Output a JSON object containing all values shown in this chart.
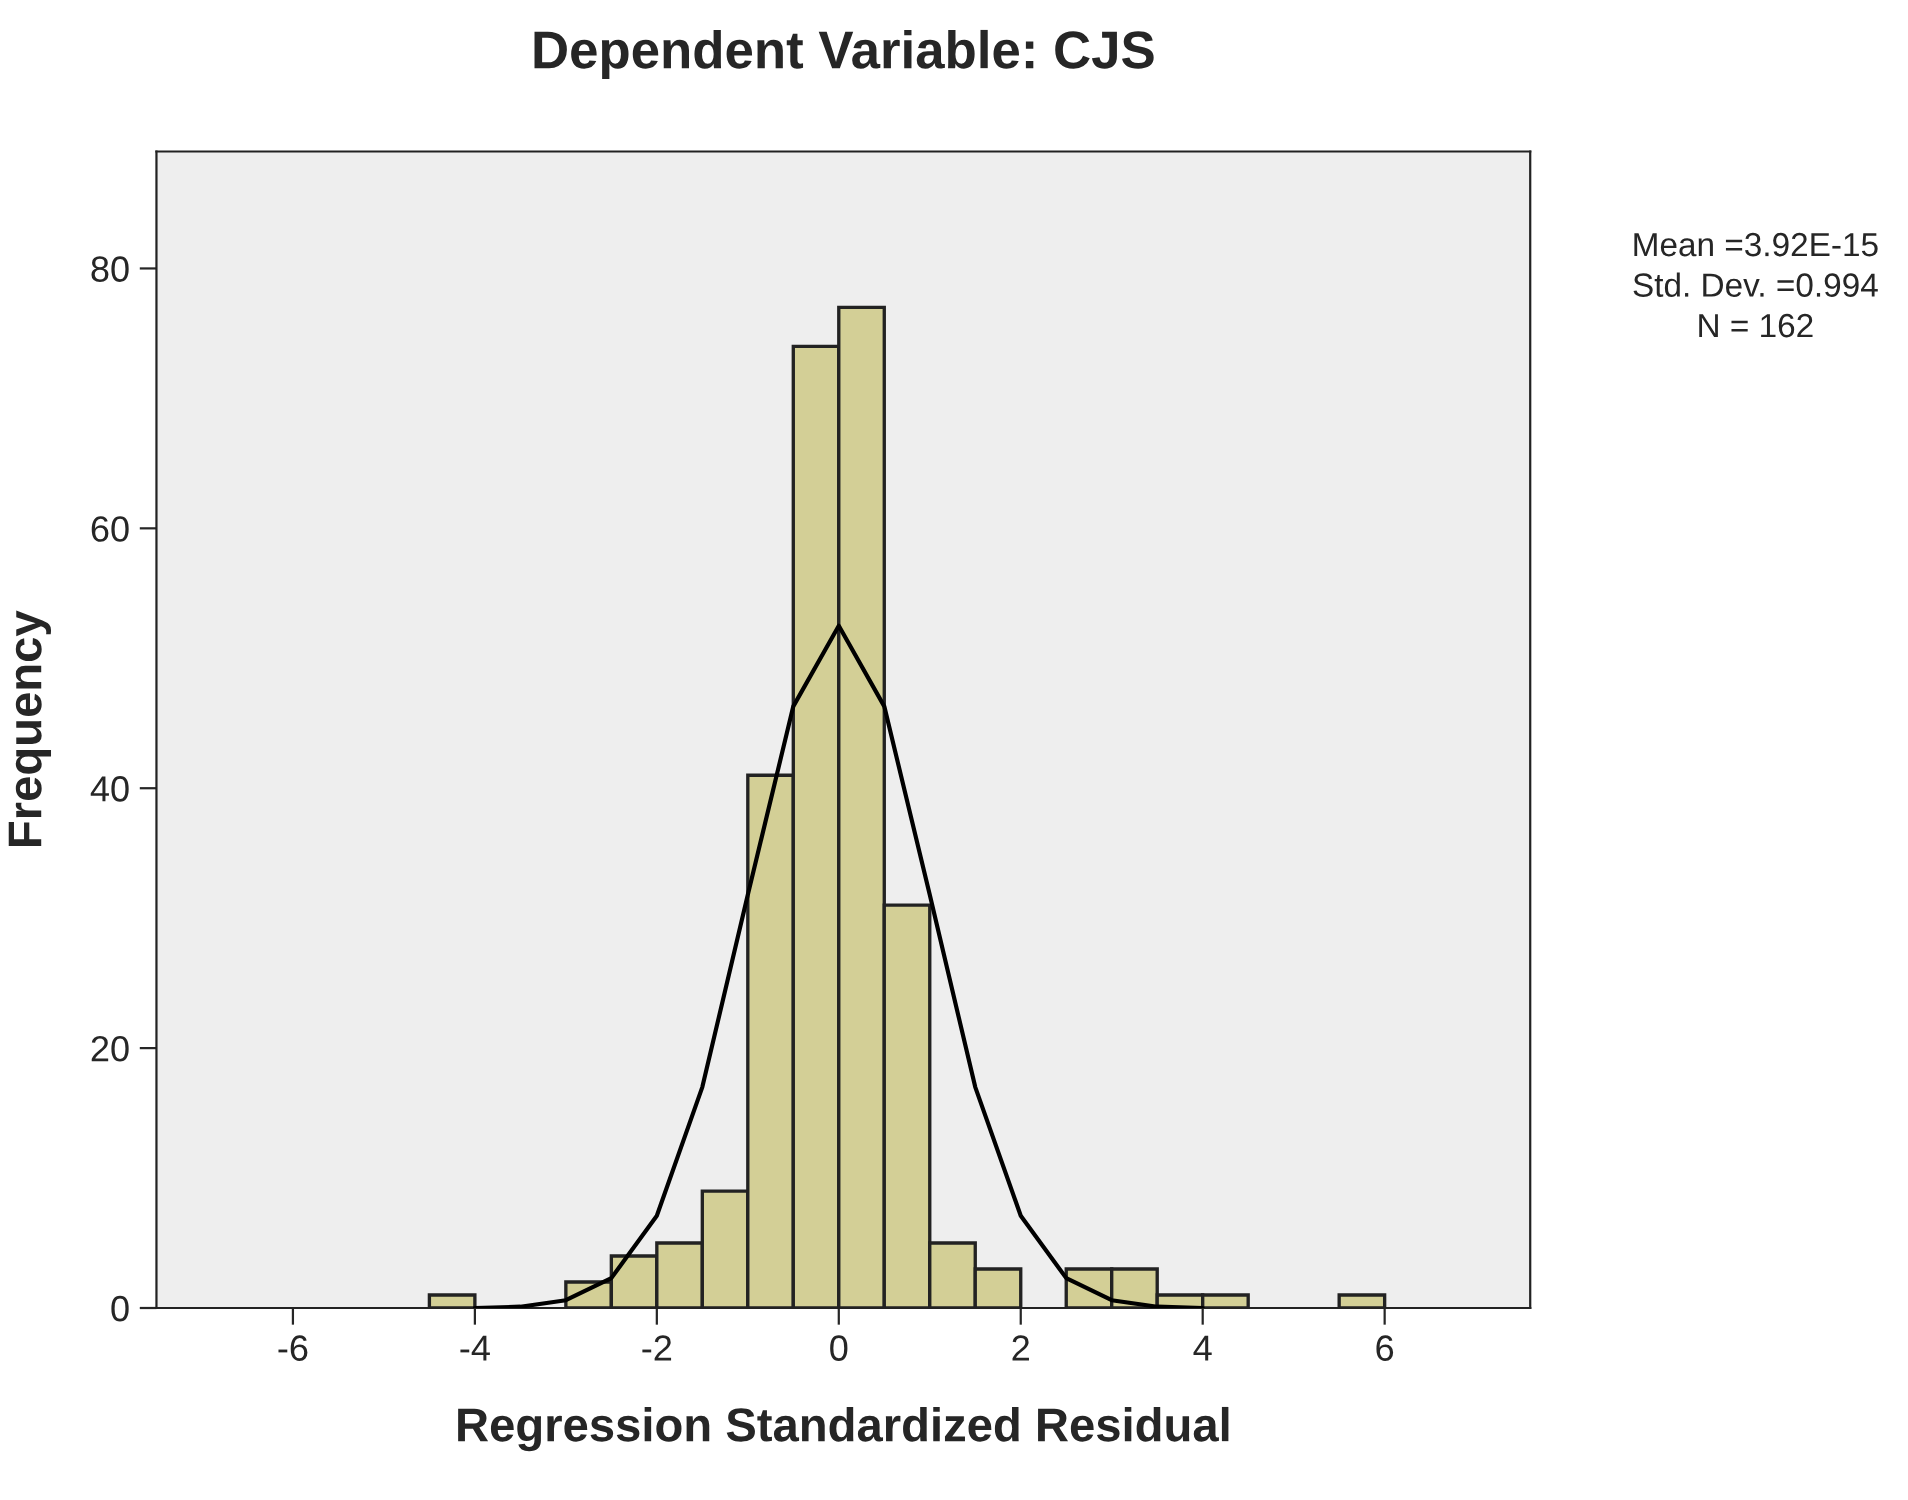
{
  "chart_data": {
    "type": "histogram",
    "title": "Dependent Variable: CJS",
    "xlabel": "Regression Standardized Residual",
    "ylabel": "Frequency",
    "series": [
      {
        "type": "histogram",
        "color": "#d3cf96",
        "bins": [
          -4.5,
          -4.0,
          -3.5,
          -3.0,
          -2.5,
          -2.0,
          -1.5,
          -1.0,
          -0.5,
          0.0,
          0.5,
          1.0,
          1.5,
          2.0,
          2.5,
          3.0,
          3.5,
          4.0,
          4.5,
          5.0,
          5.5,
          6.0
        ],
        "values": [
          1,
          0,
          0,
          2,
          4,
          5,
          9,
          41,
          74,
          77,
          31,
          5,
          3,
          0,
          3,
          3,
          1,
          1,
          0,
          0,
          1
        ]
      },
      {
        "type": "line",
        "color": "#000000",
        "x": [
          -4.0,
          -3.5,
          -3.0,
          -2.5,
          -2.0,
          -1.5,
          -1.0,
          -0.5,
          0.0,
          0.5,
          1.0,
          1.5,
          2.0,
          2.5,
          3.0,
          3.5,
          4.0
        ],
        "values": [
          0,
          0.1,
          0.6,
          2.3,
          7.1,
          17,
          31.8,
          46.3,
          52.5,
          46.3,
          31.8,
          17,
          7.1,
          2.3,
          0.6,
          0.1,
          0
        ]
      }
    ],
    "xlim": [
      -7.5,
      7.6
    ],
    "ylim": [
      0,
      89
    ],
    "xticks": [
      -6,
      -4,
      -2,
      0,
      2,
      4,
      6
    ],
    "yticks": [
      0,
      20,
      40,
      60,
      80
    ],
    "grid": false,
    "legend": false,
    "annotations": [
      "Mean =3.92E-15",
      "Std. Dev. =0.994",
      "N = 162"
    ]
  }
}
